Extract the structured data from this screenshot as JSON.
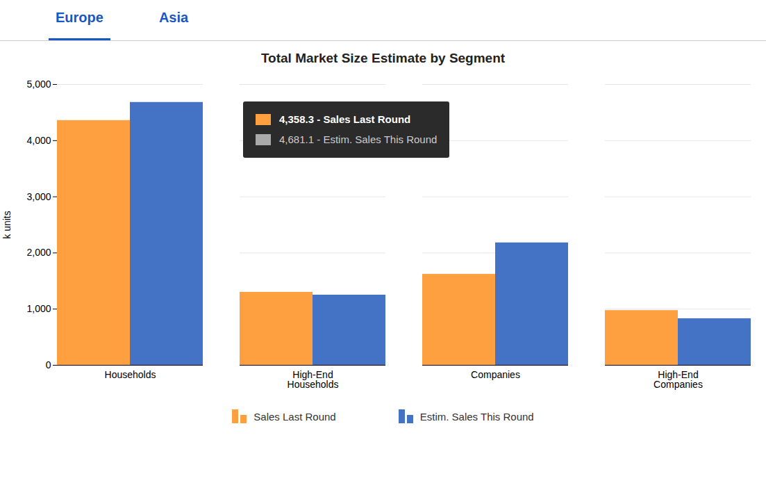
{
  "chart_data": {
    "type": "bar",
    "title": "Total Market Size Estimate by Segment",
    "categories": [
      "Households",
      "High-End\nHouseholds",
      "Companies",
      "High-End\nCompanies"
    ],
    "series": [
      {
        "name": "Sales Last Round",
        "color": "#FFA040",
        "values": [
          4358.3,
          1300,
          1620,
          975
        ]
      },
      {
        "name": "Estim. Sales This Round",
        "color": "#4472C4",
        "values": [
          4681.1,
          1250,
          2180,
          830
        ]
      }
    ],
    "ylabel": "k units",
    "ylim": [
      0,
      5000
    ],
    "yticks": [
      0,
      {
        "value": 1000,
        "label": "1,000"
      },
      {
        "value": 2000,
        "label": "2,000"
      },
      {
        "value": 3000,
        "label": "3,000"
      },
      {
        "value": 4000,
        "label": "4,000"
      },
      {
        "value": 5000,
        "label": "5,000"
      }
    ],
    "grid": true,
    "legend": "bottom",
    "annotations": [
      "Europe",
      "Asia",
      "4,358.3 - Sales Last Round",
      "4,681.1 - Estim. Sales This Round"
    ]
  }
}
